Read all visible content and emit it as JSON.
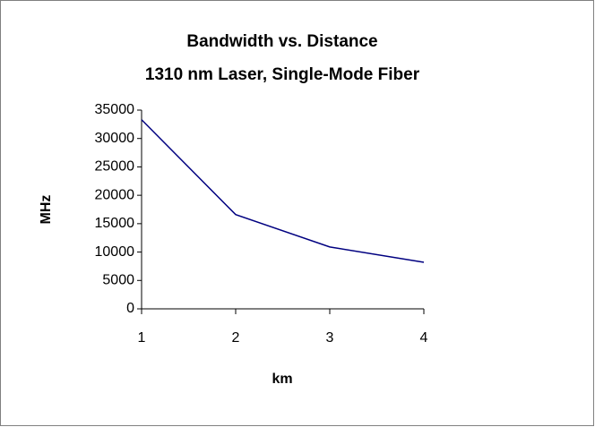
{
  "chart_data": {
    "type": "line",
    "title": "Bandwidth vs. Distance",
    "subtitle": "1310 nm Laser, Single-Mode Fiber",
    "xlabel": "km",
    "ylabel": "MHz",
    "x": [
      1,
      2,
      3,
      4
    ],
    "series": [
      {
        "name": "Bandwidth",
        "color": "#000080",
        "values": [
          33300,
          16600,
          10900,
          8200
        ]
      }
    ],
    "xlim": [
      1,
      4
    ],
    "xticks": [
      1,
      2,
      3,
      4
    ],
    "ylim": [
      0,
      35000
    ],
    "yticks": [
      0,
      5000,
      10000,
      15000,
      20000,
      25000,
      30000,
      35000
    ],
    "grid": false
  }
}
